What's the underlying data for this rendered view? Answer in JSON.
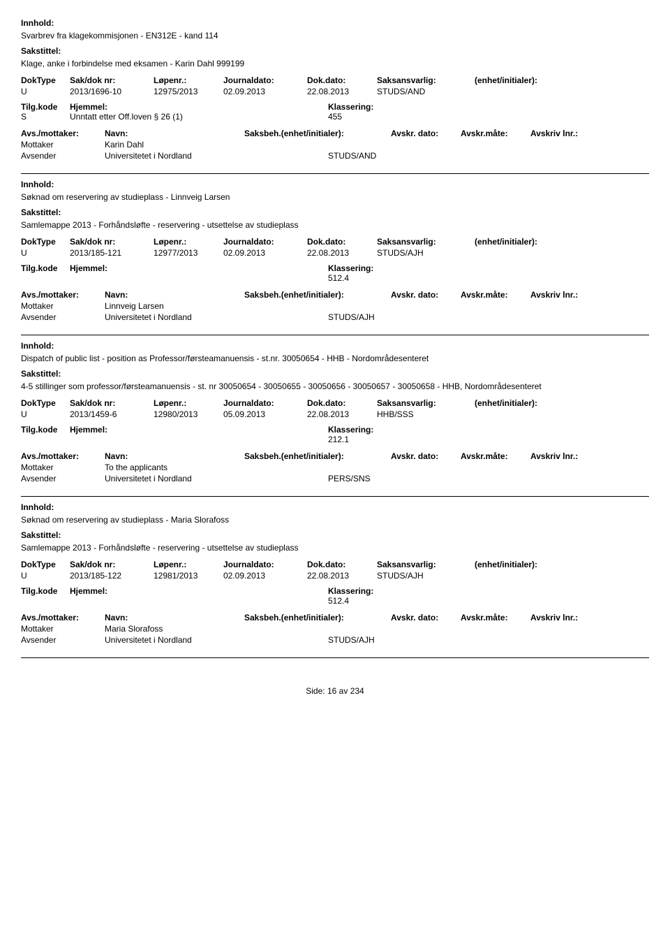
{
  "labels": {
    "innhold": "Innhold:",
    "sakstittel": "Sakstittel:",
    "doktype": "DokType",
    "sakdoknr": "Sak/dok nr:",
    "lopenr": "Løpenr.:",
    "journaldato": "Journaldato:",
    "dokdato": "Dok.dato:",
    "saksansvarlig": "Saksansvarlig:",
    "enhet": "(enhet/initialer):",
    "tilgkode": "Tilg.kode",
    "hjemmel": "Hjemmel:",
    "klassering": "Klassering:",
    "avsmottaker": "Avs./mottaker:",
    "navn": "Navn:",
    "saksbeh": "Saksbeh.(enhet/initialer):",
    "avskrdato": "Avskr. dato:",
    "avskrmate": "Avskr.måte:",
    "avskrivlnr": "Avskriv lnr.:",
    "mottaker": "Mottaker",
    "avsender": "Avsender"
  },
  "entries": [
    {
      "innhold": "Svarbrev fra klagekommisjonen - EN312E - kand 114",
      "sakstittel": "Klage, anke i forbindelse med eksamen - Karin Dahl 999199",
      "doktype": "U",
      "sakdoknr": "2013/1696-10",
      "lopenr": "12975/2013",
      "journaldato": "02.09.2013",
      "dokdato": "22.08.2013",
      "saksansvarlig": "STUDS/AND",
      "tilgkode": "S",
      "hjemmel": "Unntatt etter Off.loven § 26 (1)",
      "klassering": "455",
      "parties": [
        {
          "role": "Mottaker",
          "name": "Karin Dahl",
          "code": ""
        },
        {
          "role": "Avsender",
          "name": "Universitetet i Nordland",
          "code": "STUDS/AND"
        }
      ]
    },
    {
      "innhold": "Søknad om reservering av studieplass - Linnveig Larsen",
      "sakstittel": "Samlemappe 2013 - Forhåndsløfte - reservering - utsettelse av studieplass",
      "doktype": "U",
      "sakdoknr": "2013/185-121",
      "lopenr": "12977/2013",
      "journaldato": "02.09.2013",
      "dokdato": "22.08.2013",
      "saksansvarlig": "STUDS/AJH",
      "tilgkode": "",
      "hjemmel": "",
      "klassering": "512.4",
      "parties": [
        {
          "role": "Mottaker",
          "name": "Linnveig Larsen",
          "code": ""
        },
        {
          "role": "Avsender",
          "name": "Universitetet i Nordland",
          "code": "STUDS/AJH"
        }
      ]
    },
    {
      "innhold": "Dispatch of public list - position as Professor/førsteamanuensis - st.nr. 30050654 - HHB - Nordområdesenteret",
      "sakstittel": "4-5 stillinger som professor/førsteamanuensis - st. nr 30050654 - 30050655 - 30050656 - 30050657 - 30050658 - HHB, Nordområdesenteret",
      "doktype": "U",
      "sakdoknr": "2013/1459-6",
      "lopenr": "12980/2013",
      "journaldato": "05.09.2013",
      "dokdato": "22.08.2013",
      "saksansvarlig": "HHB/SSS",
      "tilgkode": "",
      "hjemmel": "",
      "klassering": "212.1",
      "parties": [
        {
          "role": "Mottaker",
          "name": "To the applicants",
          "code": ""
        },
        {
          "role": "Avsender",
          "name": "Universitetet i Nordland",
          "code": "PERS/SNS"
        }
      ]
    },
    {
      "innhold": "Søknad om reservering av studieplass - Maria Slorafoss",
      "sakstittel": "Samlemappe 2013 - Forhåndsløfte - reservering - utsettelse av studieplass",
      "doktype": "U",
      "sakdoknr": "2013/185-122",
      "lopenr": "12981/2013",
      "journaldato": "02.09.2013",
      "dokdato": "22.08.2013",
      "saksansvarlig": "STUDS/AJH",
      "tilgkode": "",
      "hjemmel": "",
      "klassering": "512.4",
      "parties": [
        {
          "role": "Mottaker",
          "name": "Maria Slorafoss",
          "code": ""
        },
        {
          "role": "Avsender",
          "name": "Universitetet i Nordland",
          "code": "STUDS/AJH"
        }
      ]
    }
  ],
  "footer": {
    "side": "Side:",
    "page": "16",
    "av": "av",
    "total": "234"
  }
}
